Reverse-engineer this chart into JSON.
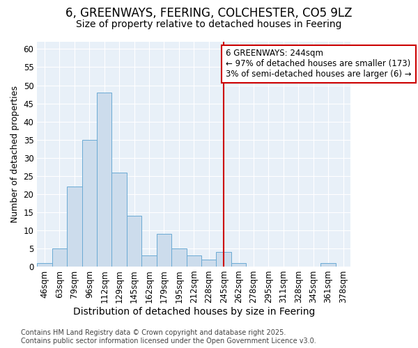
{
  "title": "6, GREENWAYS, FEERING, COLCHESTER, CO5 9LZ",
  "subtitle": "Size of property relative to detached houses in Feering",
  "xlabel": "Distribution of detached houses by size in Feering",
  "ylabel": "Number of detached properties",
  "categories": [
    "46sqm",
    "63sqm",
    "79sqm",
    "96sqm",
    "112sqm",
    "129sqm",
    "145sqm",
    "162sqm",
    "179sqm",
    "195sqm",
    "212sqm",
    "228sqm",
    "245sqm",
    "262sqm",
    "278sqm",
    "295sqm",
    "311sqm",
    "328sqm",
    "345sqm",
    "361sqm",
    "378sqm"
  ],
  "values": [
    1,
    5,
    22,
    35,
    48,
    26,
    14,
    3,
    9,
    5,
    3,
    2,
    4,
    1,
    0,
    0,
    0,
    0,
    0,
    1,
    0
  ],
  "bar_color": "#ccdcec",
  "bar_edge_color": "#6aaad4",
  "vline_color": "#cc0000",
  "annotation_box_text": "6 GREENWAYS: 244sqm\n← 97% of detached houses are smaller (173)\n3% of semi-detached houses are larger (6) →",
  "annotation_box_color": "#cc0000",
  "annotation_box_fill": "white",
  "ylim": [
    0,
    62
  ],
  "yticks": [
    0,
    5,
    10,
    15,
    20,
    25,
    30,
    35,
    40,
    45,
    50,
    55,
    60
  ],
  "background_color": "#e8f0f8",
  "footer_text": "Contains HM Land Registry data © Crown copyright and database right 2025.\nContains public sector information licensed under the Open Government Licence v3.0.",
  "title_fontsize": 12,
  "subtitle_fontsize": 10,
  "xlabel_fontsize": 10,
  "ylabel_fontsize": 9,
  "tick_fontsize": 8.5,
  "annotation_fontsize": 8.5,
  "footer_fontsize": 7
}
